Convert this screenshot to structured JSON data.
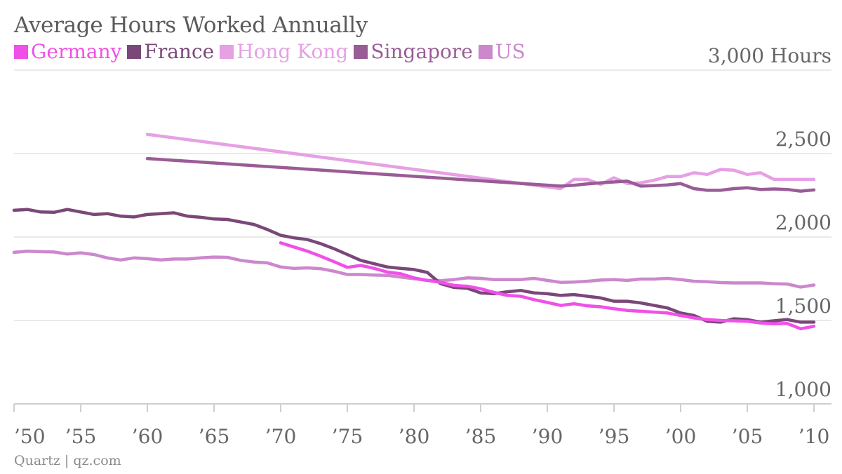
{
  "colors": {
    "Germany": "#f050e8",
    "France": "#7a4878",
    "Hong Kong": "#e6a0e4",
    "Singapore": "#9a5c96",
    "US": "#cc88cc"
  },
  "chart_data": {
    "type": "line",
    "title": "Average Hours Worked Annually",
    "xlabel": "",
    "ylabel": "",
    "xlim": [
      1950,
      2011
    ],
    "ylim": [
      1000,
      3000
    ],
    "grid": true,
    "legend_position": "top-left",
    "y_ticks": [
      {
        "value": 3000,
        "label": "3,000 Hours"
      },
      {
        "value": 2500,
        "label": "2,500"
      },
      {
        "value": 2000,
        "label": "2,000"
      },
      {
        "value": 1500,
        "label": "1,500"
      },
      {
        "value": 1000,
        "label": "1,000"
      }
    ],
    "x_ticks": [
      {
        "value": 1950,
        "label": "’50"
      },
      {
        "value": 1955,
        "label": "’55"
      },
      {
        "value": 1960,
        "label": "’60"
      },
      {
        "value": 1965,
        "label": "’65"
      },
      {
        "value": 1970,
        "label": "’70"
      },
      {
        "value": 1975,
        "label": "’75"
      },
      {
        "value": 1980,
        "label": "’80"
      },
      {
        "value": 1985,
        "label": "’85"
      },
      {
        "value": 1990,
        "label": "’90"
      },
      {
        "value": 1995,
        "label": "’95"
      },
      {
        "value": 2000,
        "label": "’00"
      },
      {
        "value": 2005,
        "label": "’05"
      },
      {
        "value": 2010,
        "label": "’10"
      }
    ],
    "series": [
      {
        "name": "US",
        "x": [
          1950,
          1951,
          1952,
          1953,
          1954,
          1955,
          1956,
          1957,
          1958,
          1959,
          1960,
          1961,
          1962,
          1963,
          1964,
          1965,
          1966,
          1967,
          1968,
          1969,
          1970,
          1971,
          1972,
          1973,
          1974,
          1975,
          1976,
          1977,
          1978,
          1979,
          1980,
          1981,
          1982,
          1983,
          1984,
          1985,
          1986,
          1987,
          1988,
          1989,
          1990,
          1991,
          1992,
          1993,
          1994,
          1995,
          1996,
          1997,
          1998,
          1999,
          2000,
          2001,
          2002,
          2003,
          2004,
          2005,
          2006,
          2007,
          2008,
          2009,
          2010
        ],
        "y": [
          1908,
          1915,
          1912,
          1910,
          1898,
          1905,
          1895,
          1875,
          1862,
          1875,
          1870,
          1862,
          1868,
          1868,
          1875,
          1880,
          1878,
          1860,
          1850,
          1845,
          1820,
          1812,
          1815,
          1810,
          1795,
          1775,
          1775,
          1772,
          1770,
          1760,
          1750,
          1740,
          1738,
          1745,
          1755,
          1752,
          1745,
          1745,
          1745,
          1752,
          1740,
          1728,
          1730,
          1735,
          1742,
          1745,
          1740,
          1748,
          1748,
          1752,
          1745,
          1735,
          1732,
          1727,
          1725,
          1725,
          1725,
          1720,
          1718,
          1700,
          1712
        ]
      },
      {
        "name": "France",
        "x": [
          1950,
          1951,
          1952,
          1953,
          1954,
          1955,
          1956,
          1957,
          1958,
          1959,
          1960,
          1961,
          1962,
          1963,
          1964,
          1965,
          1966,
          1967,
          1968,
          1969,
          1970,
          1971,
          1972,
          1973,
          1974,
          1975,
          1976,
          1977,
          1978,
          1979,
          1980,
          1981,
          1982,
          1983,
          1984,
          1985,
          1986,
          1987,
          1988,
          1989,
          1990,
          1991,
          1992,
          1993,
          1994,
          1995,
          1996,
          1997,
          1998,
          1999,
          2000,
          2001,
          2002,
          2003,
          2004,
          2005,
          2006,
          2007,
          2008,
          2009,
          2010
        ],
        "y": [
          2160,
          2165,
          2150,
          2148,
          2165,
          2150,
          2135,
          2140,
          2125,
          2120,
          2135,
          2140,
          2145,
          2125,
          2118,
          2108,
          2105,
          2090,
          2075,
          2045,
          2010,
          1995,
          1985,
          1960,
          1930,
          1895,
          1860,
          1840,
          1820,
          1812,
          1805,
          1788,
          1720,
          1698,
          1693,
          1665,
          1660,
          1672,
          1680,
          1665,
          1660,
          1650,
          1655,
          1645,
          1635,
          1615,
          1615,
          1605,
          1590,
          1575,
          1545,
          1530,
          1495,
          1490,
          1510,
          1505,
          1490,
          1498,
          1505,
          1490,
          1490
        ]
      },
      {
        "name": "Germany",
        "x": [
          1970,
          1971,
          1972,
          1973,
          1974,
          1975,
          1976,
          1977,
          1978,
          1979,
          1980,
          1981,
          1982,
          1983,
          1984,
          1985,
          1986,
          1987,
          1988,
          1989,
          1990,
          1991,
          1992,
          1993,
          1994,
          1995,
          1996,
          1997,
          1998,
          1999,
          2000,
          2001,
          2002,
          2003,
          2004,
          2005,
          2006,
          2007,
          2008,
          2009,
          2010
        ],
        "y": [
          1965,
          1940,
          1915,
          1885,
          1852,
          1818,
          1830,
          1812,
          1790,
          1780,
          1755,
          1740,
          1728,
          1710,
          1705,
          1690,
          1668,
          1650,
          1645,
          1625,
          1608,
          1590,
          1600,
          1588,
          1582,
          1570,
          1560,
          1555,
          1550,
          1545,
          1530,
          1515,
          1505,
          1500,
          1498,
          1495,
          1485,
          1480,
          1482,
          1450,
          1465
        ]
      },
      {
        "name": "Hong Kong",
        "x": [
          1960,
          1991,
          1992,
          1993,
          1994,
          1995,
          1996,
          1997,
          1998,
          1999,
          2000,
          2001,
          2002,
          2003,
          2004,
          2005,
          2006,
          2007,
          2008,
          2009,
          2010
        ],
        "y": [
          2615,
          2290,
          2345,
          2345,
          2315,
          2355,
          2320,
          2325,
          2340,
          2362,
          2362,
          2385,
          2375,
          2405,
          2400,
          2375,
          2385,
          2345,
          2345,
          2345,
          2345
        ]
      },
      {
        "name": "Singapore",
        "x": [
          1960,
          1991,
          1992,
          1993,
          1994,
          1995,
          1996,
          1997,
          1998,
          1999,
          2000,
          2001,
          2002,
          2003,
          2004,
          2005,
          2006,
          2007,
          2008,
          2009,
          2010
        ],
        "y": [
          2470,
          2305,
          2310,
          2318,
          2325,
          2330,
          2335,
          2305,
          2308,
          2312,
          2320,
          2290,
          2280,
          2280,
          2290,
          2295,
          2285,
          2288,
          2285,
          2275,
          2282
        ]
      }
    ],
    "draw_order": [
      "US",
      "France",
      "Germany",
      "Hong Kong",
      "Singapore"
    ]
  },
  "legend": [
    {
      "label": "Germany",
      "color": "#f050e8"
    },
    {
      "label": "France",
      "color": "#7a4878"
    },
    {
      "label": "Hong Kong",
      "color": "#e6a0e4"
    },
    {
      "label": "Singapore",
      "color": "#9a5c96"
    },
    {
      "label": "US",
      "color": "#cc88cc"
    }
  ],
  "source": "Quartz | qz.com"
}
